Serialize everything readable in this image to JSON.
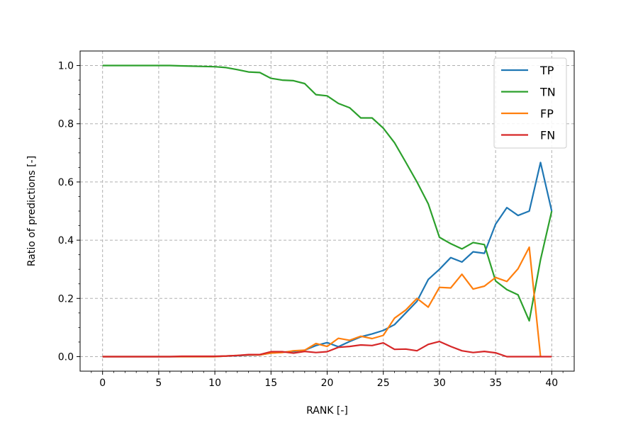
{
  "chart_data": {
    "type": "line",
    "title": "",
    "xlabel": "RANK [-]",
    "ylabel": "Ratio of predictions [-]",
    "xlim": [
      -2,
      42
    ],
    "ylim": [
      -0.05,
      1.05
    ],
    "xticks": [
      0,
      5,
      10,
      15,
      20,
      25,
      30,
      35,
      40
    ],
    "yticks": [
      0.0,
      0.2,
      0.4,
      0.6,
      0.8,
      1.0
    ],
    "xtick_labels": [
      "0",
      "5",
      "10",
      "15",
      "20",
      "25",
      "30",
      "35",
      "40"
    ],
    "ytick_labels": [
      "0.0",
      "0.2",
      "0.4",
      "0.6",
      "0.8",
      "1.0"
    ],
    "grid": true,
    "legend_position": "top-right",
    "x": [
      0,
      1,
      2,
      3,
      4,
      5,
      6,
      7,
      8,
      9,
      10,
      11,
      12,
      13,
      14,
      15,
      16,
      17,
      18,
      19,
      20,
      21,
      22,
      23,
      24,
      25,
      26,
      27,
      28,
      29,
      30,
      31,
      32,
      33,
      34,
      35,
      36,
      37,
      38,
      39,
      40
    ],
    "series": [
      {
        "name": "TP",
        "color": "#1f77b4",
        "values": [
          0,
          0,
          0,
          0,
          0,
          0,
          0,
          0,
          0,
          0,
          0,
          0.002,
          0.003,
          0.005,
          0.006,
          0.012,
          0.015,
          0.018,
          0.022,
          0.038,
          0.048,
          0.034,
          0.052,
          0.068,
          0.078,
          0.09,
          0.11,
          0.15,
          0.19,
          0.265,
          0.3,
          0.34,
          0.325,
          0.36,
          0.355,
          0.455,
          0.512,
          0.485,
          0.5,
          0.667,
          0.5
        ]
      },
      {
        "name": "TN",
        "color": "#2ca02c",
        "values": [
          1.0,
          1.0,
          1.0,
          1.0,
          1.0,
          1.0,
          1.0,
          0.999,
          0.998,
          0.997,
          0.996,
          0.993,
          0.986,
          0.978,
          0.976,
          0.956,
          0.95,
          0.948,
          0.938,
          0.9,
          0.896,
          0.87,
          0.855,
          0.82,
          0.82,
          0.785,
          0.735,
          0.668,
          0.6,
          0.525,
          0.41,
          0.388,
          0.37,
          0.392,
          0.385,
          0.26,
          0.23,
          0.212,
          0.123,
          0.333,
          0.5
        ]
      },
      {
        "name": "FP",
        "color": "#ff7f0e",
        "values": [
          0,
          0,
          0,
          0,
          0,
          0,
          0,
          0,
          0,
          0,
          0,
          0.002,
          0.004,
          0.006,
          0.006,
          0.012,
          0.014,
          0.02,
          0.022,
          0.045,
          0.035,
          0.063,
          0.056,
          0.07,
          0.062,
          0.073,
          0.132,
          0.16,
          0.2,
          0.17,
          0.238,
          0.236,
          0.283,
          0.232,
          0.242,
          0.272,
          0.258,
          0.302,
          0.376,
          0.0,
          null
        ]
      },
      {
        "name": "FN",
        "color": "#d62728",
        "values": [
          0,
          0,
          0,
          0,
          0,
          0,
          0,
          0.001,
          0.001,
          0.001,
          0.001,
          0.002,
          0.004,
          0.007,
          0.007,
          0.017,
          0.017,
          0.012,
          0.018,
          0.014,
          0.017,
          0.032,
          0.035,
          0.04,
          0.038,
          0.047,
          0.025,
          0.026,
          0.02,
          0.042,
          0.052,
          0.035,
          0.02,
          0.014,
          0.018,
          0.013,
          0,
          0,
          0,
          0,
          0
        ]
      }
    ]
  }
}
